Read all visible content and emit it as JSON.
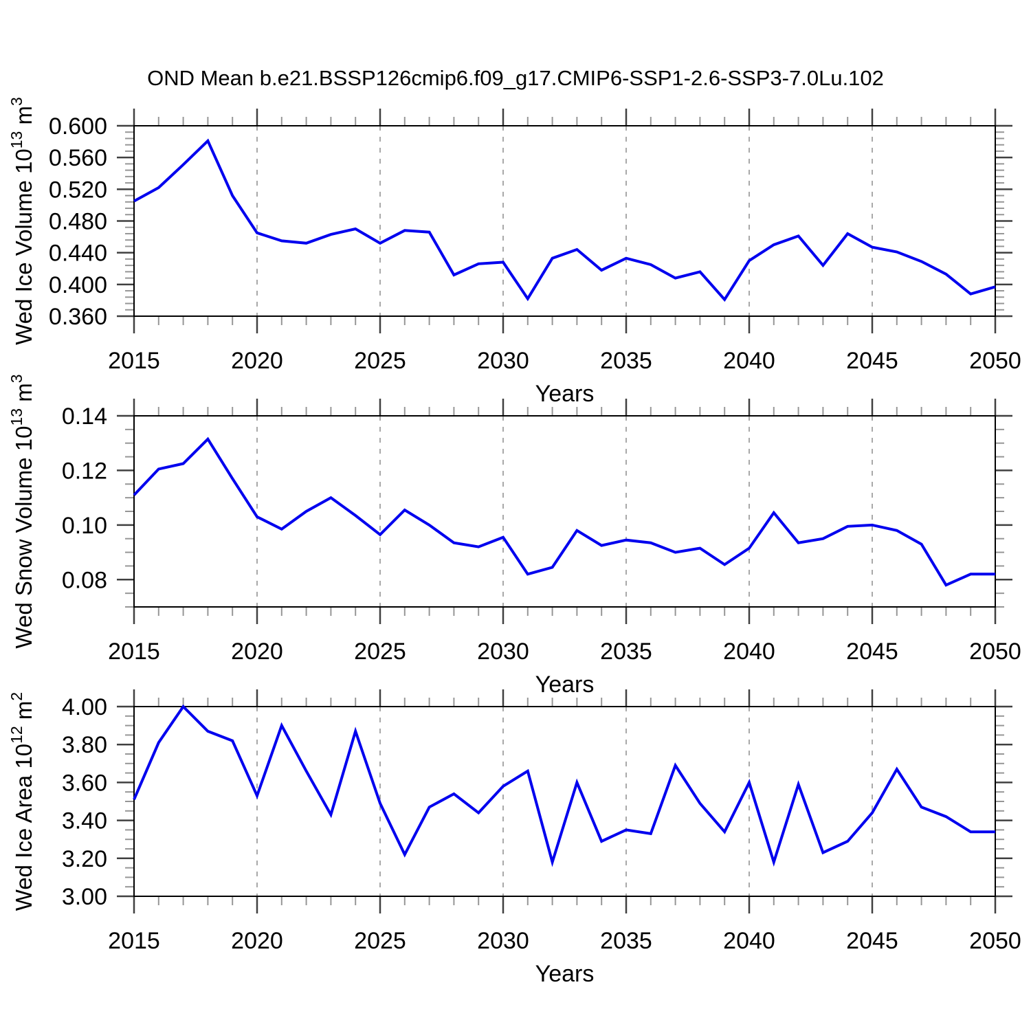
{
  "title": "OND Mean b.e21.BSSP126cmip6.f09_g17.CMIP6-SSP1-2.6-SSP3-7.0Lu.102",
  "colors": {
    "background": "#ffffff",
    "line": "#0000ee",
    "border": "#000000",
    "major_tick": "#404040",
    "minor_tick": "#969696",
    "grid": "#a8a8a8",
    "text": "#000000"
  },
  "chart_data": [
    {
      "type": "line",
      "ylabel": "Wed Ice Volume 10^13 m^3",
      "xlabel": "Years",
      "x": [
        2015,
        2016,
        2017,
        2018,
        2019,
        2020,
        2021,
        2022,
        2023,
        2024,
        2025,
        2026,
        2027,
        2028,
        2029,
        2030,
        2031,
        2032,
        2033,
        2034,
        2035,
        2036,
        2037,
        2038,
        2039,
        2040,
        2041,
        2042,
        2043,
        2044,
        2045,
        2046,
        2047,
        2048,
        2049,
        2050
      ],
      "values": [
        0.505,
        0.522,
        0.551,
        0.581,
        0.512,
        0.465,
        0.455,
        0.452,
        0.463,
        0.47,
        0.452,
        0.468,
        0.466,
        0.412,
        0.426,
        0.428,
        0.382,
        0.433,
        0.444,
        0.418,
        0.433,
        0.425,
        0.408,
        0.416,
        0.381,
        0.43,
        0.45,
        0.461,
        0.424,
        0.464,
        0.447,
        0.441,
        0.429,
        0.413,
        0.388,
        0.397
      ],
      "xlim": [
        2015,
        2050
      ],
      "ylim": [
        0.36,
        0.6
      ],
      "y_major_ticks": [
        0.36,
        0.4,
        0.44,
        0.48,
        0.52,
        0.56,
        0.6
      ],
      "y_tick_labels": [
        "0.360",
        "0.400",
        "0.440",
        "0.480",
        "0.520",
        "0.560",
        "0.600"
      ],
      "y_minor_step": 0.008,
      "x_tick_values": [
        2015,
        2020,
        2025,
        2030,
        2035,
        2040,
        2045,
        2050
      ],
      "x_tick_labels": [
        "2015",
        "2020",
        "2025",
        "2030",
        "2035",
        "2040",
        "2045",
        "2050"
      ],
      "x_minor_step": 1,
      "grid_x": [
        2020,
        2025,
        2030,
        2035,
        2040,
        2045
      ],
      "grid_style": "vertical-dashed",
      "legend": "none"
    },
    {
      "type": "line",
      "ylabel": "Wed Snow Volume 10^13 m^3",
      "xlabel": "Years",
      "x": [
        2015,
        2016,
        2017,
        2018,
        2019,
        2020,
        2021,
        2022,
        2023,
        2024,
        2025,
        2026,
        2027,
        2028,
        2029,
        2030,
        2031,
        2032,
        2033,
        2034,
        2035,
        2036,
        2037,
        2038,
        2039,
        2040,
        2041,
        2042,
        2043,
        2044,
        2045,
        2046,
        2047,
        2048,
        2049,
        2050
      ],
      "values": [
        0.111,
        0.1205,
        0.1225,
        0.1315,
        0.117,
        0.103,
        0.0985,
        0.105,
        0.11,
        0.1035,
        0.0965,
        0.1055,
        0.1,
        0.0935,
        0.092,
        0.0955,
        0.082,
        0.0845,
        0.098,
        0.0925,
        0.0945,
        0.0935,
        0.09,
        0.0915,
        0.0855,
        0.0915,
        0.1045,
        0.0935,
        0.095,
        0.0995,
        0.1,
        0.098,
        0.093,
        0.078,
        0.082,
        0.082
      ],
      "xlim": [
        2015,
        2050
      ],
      "ylim": [
        0.07,
        0.14
      ],
      "y_major_ticks": [
        0.08,
        0.1,
        0.12,
        0.14
      ],
      "y_tick_labels": [
        "0.08",
        "0.10",
        "0.12",
        "0.14"
      ],
      "y_minor_step": 0.005,
      "x_tick_values": [
        2015,
        2020,
        2025,
        2030,
        2035,
        2040,
        2045,
        2050
      ],
      "x_tick_labels": [
        "2015",
        "2020",
        "2025",
        "2030",
        "2035",
        "2040",
        "2045",
        "2050"
      ],
      "x_minor_step": 1,
      "grid_x": [
        2020,
        2025,
        2030,
        2035,
        2040,
        2045
      ],
      "grid_style": "vertical-dashed",
      "legend": "none"
    },
    {
      "type": "line",
      "ylabel": "Wed Ice Area 10^12 m^2",
      "xlabel": "Years",
      "x": [
        2015,
        2016,
        2017,
        2018,
        2019,
        2020,
        2021,
        2022,
        2023,
        2024,
        2025,
        2026,
        2027,
        2028,
        2029,
        2030,
        2031,
        2032,
        2033,
        2034,
        2035,
        2036,
        2037,
        2038,
        2039,
        2040,
        2041,
        2042,
        2043,
        2044,
        2045,
        2046,
        2047,
        2048,
        2049,
        2050
      ],
      "values": [
        3.51,
        3.81,
        4.0,
        3.87,
        3.82,
        3.53,
        3.9,
        3.66,
        3.43,
        3.87,
        3.49,
        3.22,
        3.47,
        3.54,
        3.44,
        3.58,
        3.66,
        3.18,
        3.6,
        3.29,
        3.35,
        3.33,
        3.69,
        3.49,
        3.34,
        3.6,
        3.18,
        3.59,
        3.23,
        3.29,
        3.44,
        3.67,
        3.47,
        3.42,
        3.34,
        3.34
      ],
      "xlim": [
        2015,
        2050
      ],
      "ylim": [
        3.0,
        4.0
      ],
      "y_major_ticks": [
        3.0,
        3.2,
        3.4,
        3.6,
        3.8,
        4.0
      ],
      "y_tick_labels": [
        "3.00",
        "3.20",
        "3.40",
        "3.60",
        "3.80",
        "4.00"
      ],
      "y_minor_step": 0.05,
      "x_tick_values": [
        2015,
        2020,
        2025,
        2030,
        2035,
        2040,
        2045,
        2050
      ],
      "x_tick_labels": [
        "2015",
        "2020",
        "2025",
        "2030",
        "2035",
        "2040",
        "2045",
        "2050"
      ],
      "x_minor_step": 1,
      "grid_x": [
        2020,
        2025,
        2030,
        2035,
        2040,
        2045
      ],
      "grid_style": "vertical-dashed",
      "legend": "none"
    }
  ]
}
